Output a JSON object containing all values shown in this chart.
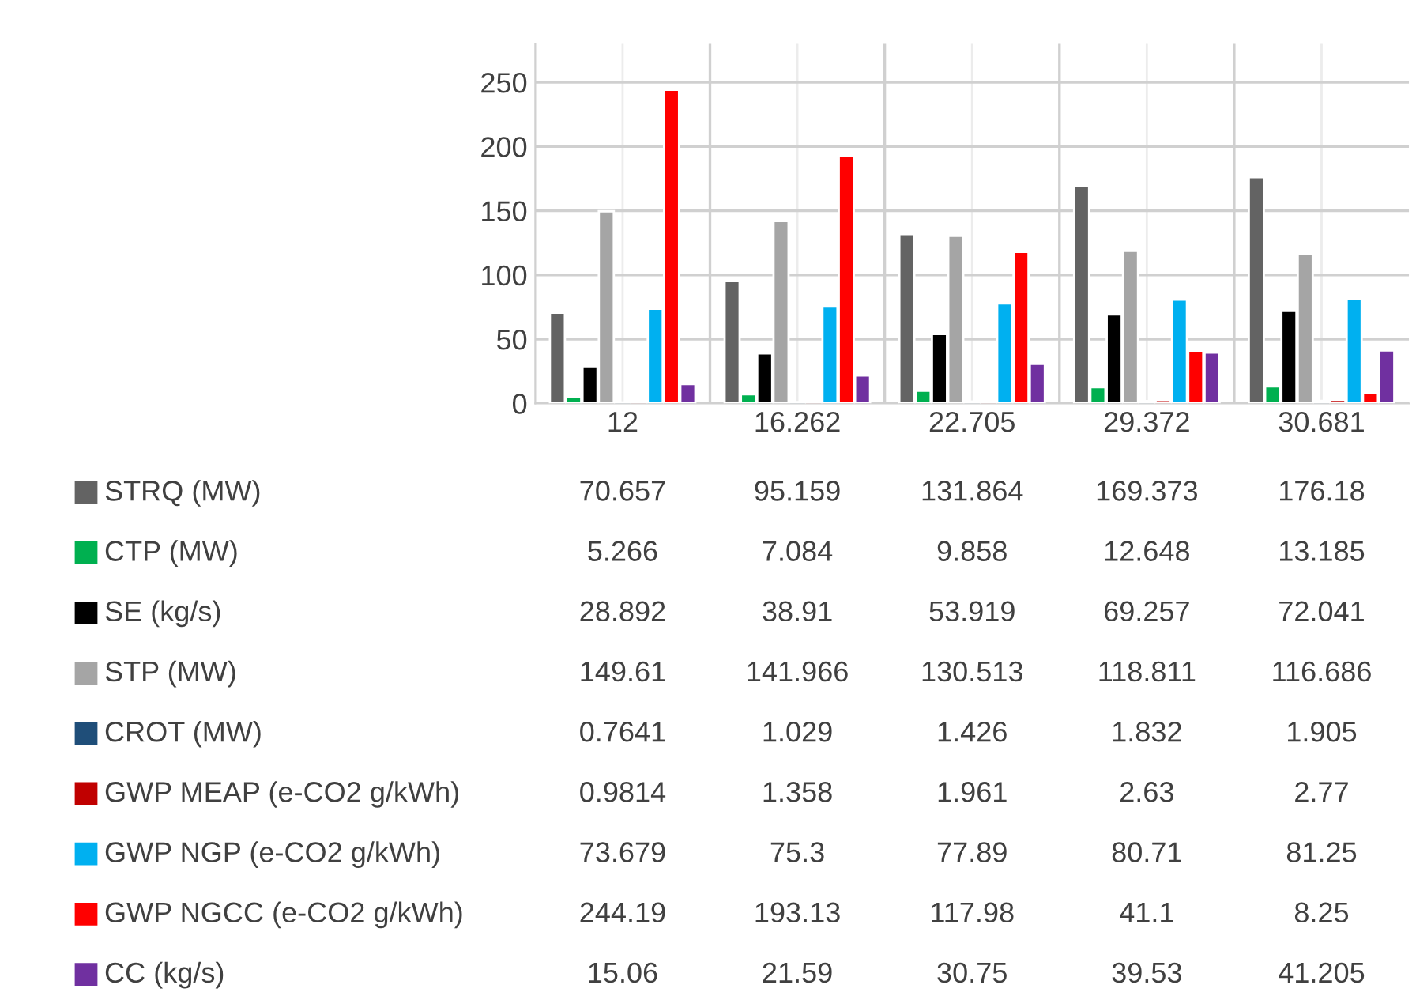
{
  "chart_data": {
    "type": "bar",
    "categories": [
      "12",
      "16.262",
      "22.705",
      "29.372",
      "30.681"
    ],
    "series": [
      {
        "name": "STRQ (MW)",
        "color": "#636363",
        "values": [
          70.657,
          95.159,
          131.864,
          169.373,
          176.18
        ]
      },
      {
        "name": "CTP (MW)",
        "color": "#00b050",
        "values": [
          5.266,
          7.084,
          9.858,
          12.648,
          13.185
        ]
      },
      {
        "name": "SE (kg/s)",
        "color": "#000000",
        "values": [
          28.892,
          38.91,
          53.919,
          69.257,
          72.041
        ]
      },
      {
        "name": "STP (MW)",
        "color": "#a5a5a5",
        "values": [
          149.61,
          141.966,
          130.513,
          118.811,
          116.686
        ]
      },
      {
        "name": "CROT (MW)",
        "color": "#1f4e79",
        "values": [
          0.7641,
          1.029,
          1.426,
          1.832,
          1.905
        ]
      },
      {
        "name": "GWP MEAP (e-CO2 g/kWh)",
        "color": "#c00000",
        "values": [
          0.9814,
          1.358,
          1.961,
          2.63,
          2.77
        ]
      },
      {
        "name": "GWP NGP (e-CO2 g/kWh)",
        "color": "#00b0f0",
        "values": [
          73.679,
          75.3,
          77.89,
          80.71,
          81.25
        ]
      },
      {
        "name": "GWP NGCC (e-CO2 g/kWh)",
        "color": "#ff0000",
        "values": [
          244.19,
          193.13,
          117.98,
          41.1,
          8.25
        ]
      },
      {
        "name": "CC (kg/s)",
        "color": "#7030a0",
        "values": [
          15.06,
          21.59,
          30.75,
          39.53,
          41.205
        ]
      }
    ],
    "ylim": [
      0,
      280
    ],
    "yticks": [
      0,
      50,
      100,
      150,
      200,
      250
    ],
    "grid": true,
    "legend": "left",
    "data_labels": true
  }
}
